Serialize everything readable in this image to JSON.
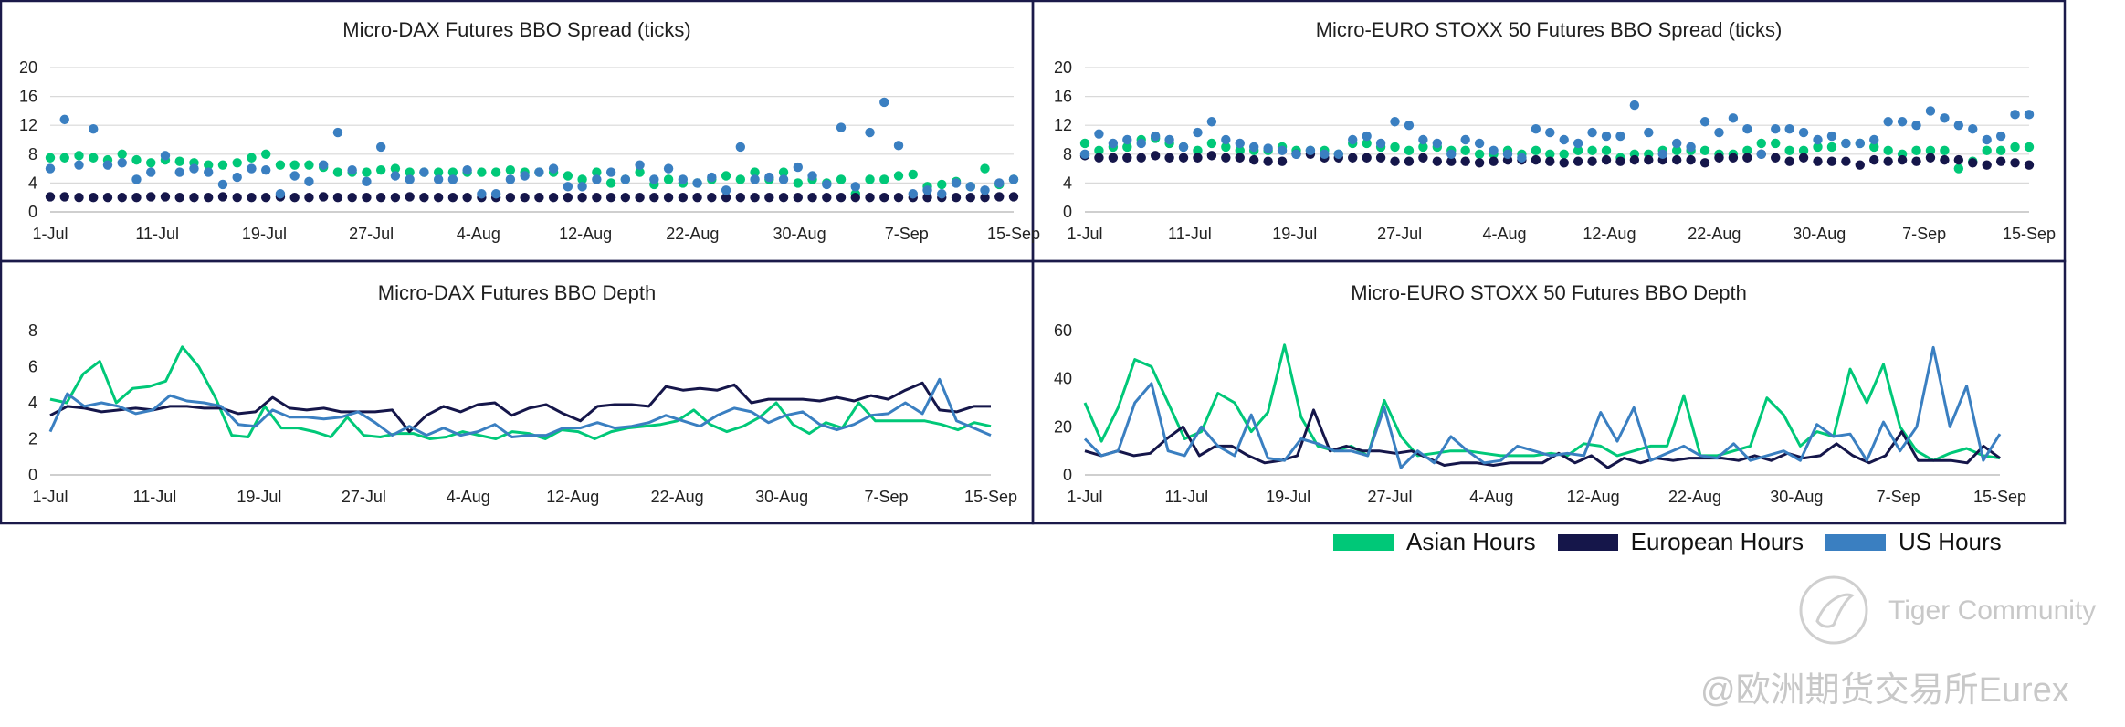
{
  "colors": {
    "asian": "#00c878",
    "european": "#15164a",
    "us": "#3a7fc1"
  },
  "legend": {
    "asian": "Asian Hours",
    "european": "European Hours",
    "us": "US Hours"
  },
  "watermark": {
    "line1": "Tiger Community",
    "line2": "@欧洲期货交易所Eurex"
  },
  "chart_data": [
    {
      "id": "dax_spread",
      "type": "scatter",
      "title": "Micro-DAX Futures BBO Spread (ticks)",
      "ylim": [
        0,
        20
      ],
      "yticks": [
        0,
        4,
        8,
        12,
        16,
        20
      ],
      "xticks": [
        "1-Jul",
        "11-Jul",
        "19-Jul",
        "27-Jul",
        "4-Aug",
        "12-Aug",
        "22-Aug",
        "30-Aug",
        "7-Sep",
        "15-Sep"
      ],
      "grid": true,
      "series": [
        {
          "key": "asian",
          "name": "Asian Hours",
          "values": [
            7.5,
            7.5,
            7.8,
            7.5,
            7.2,
            8.0,
            7.2,
            6.8,
            7.2,
            7.0,
            6.8,
            6.5,
            6.5,
            6.8,
            7.5,
            8.0,
            6.5,
            6.5,
            6.5,
            6.2,
            5.5,
            5.5,
            5.5,
            5.8,
            6.0,
            5.5,
            5.5,
            5.5,
            5.5,
            5.5,
            5.5,
            5.5,
            5.8,
            5.5,
            5.5,
            5.5,
            5.0,
            4.5,
            5.5,
            4.0,
            4.5,
            5.5,
            3.8,
            4.5,
            4.0,
            4.0,
            4.5,
            5.0,
            4.5,
            5.5,
            4.5,
            5.5,
            4.0,
            4.5,
            4.0,
            4.5,
            2.5,
            4.5,
            4.5,
            5.0,
            5.2,
            3.5,
            3.8,
            4.2,
            3.5,
            6.0,
            3.8,
            4.5
          ]
        },
        {
          "key": "european",
          "name": "European Hours",
          "values": [
            2.1,
            2.1,
            2.0,
            2.0,
            2.0,
            2.0,
            2.0,
            2.1,
            2.1,
            2.0,
            2.0,
            2.0,
            2.1,
            2.0,
            2.0,
            2.0,
            2.1,
            2.0,
            2.0,
            2.1,
            2.0,
            2.0,
            2.0,
            2.0,
            2.0,
            2.1,
            2.0,
            2.0,
            2.0,
            2.0,
            2.0,
            2.0,
            2.0,
            2.0,
            2.0,
            2.0,
            2.0,
            2.0,
            2.0,
            2.0,
            2.0,
            2.0,
            2.0,
            2.0,
            2.0,
            2.0,
            2.0,
            2.0,
            2.0,
            2.0,
            2.0,
            2.0,
            2.0,
            2.0,
            2.0,
            2.0,
            2.0,
            2.0,
            2.0,
            2.0,
            2.0,
            2.0,
            2.0,
            2.0,
            2.0,
            2.0,
            2.1,
            2.1
          ]
        },
        {
          "key": "us",
          "name": "US Hours",
          "values": [
            6.0,
            12.8,
            6.5,
            11.5,
            6.5,
            6.8,
            4.5,
            5.5,
            7.8,
            5.5,
            6.0,
            5.5,
            3.8,
            4.8,
            6.0,
            5.8,
            2.5,
            5.0,
            4.2,
            6.5,
            11.0,
            5.8,
            4.2,
            9.0,
            5.0,
            4.5,
            5.5,
            4.5,
            4.5,
            5.8,
            2.5,
            2.5,
            4.5,
            5.0,
            5.5,
            6.0,
            3.5,
            3.5,
            4.5,
            5.5,
            4.5,
            6.5,
            4.5,
            6.0,
            4.5,
            4.0,
            4.8,
            3.0,
            9.0,
            4.5,
            4.8,
            4.5,
            6.2,
            5.0,
            3.8,
            11.7,
            3.5,
            11.0,
            15.2,
            9.2,
            2.5,
            3.0,
            2.5,
            4.0,
            3.5,
            3.0,
            4.0,
            4.5
          ]
        }
      ]
    },
    {
      "id": "estx_spread",
      "type": "scatter",
      "title": "Micro-EURO STOXX 50 Futures BBO Spread (ticks)",
      "ylim": [
        0,
        20
      ],
      "yticks": [
        0,
        4,
        8,
        12,
        16,
        20
      ],
      "xticks": [
        "1-Jul",
        "11-Jul",
        "19-Jul",
        "27-Jul",
        "4-Aug",
        "12-Aug",
        "22-Aug",
        "30-Aug",
        "7-Sep",
        "15-Sep"
      ],
      "grid": true,
      "series": [
        {
          "key": "asian",
          "name": "Asian Hours",
          "values": [
            9.5,
            8.5,
            9.0,
            9.0,
            10.0,
            10.2,
            9.5,
            9.0,
            8.5,
            9.5,
            9.0,
            8.5,
            8.5,
            8.5,
            9.0,
            8.5,
            8.5,
            8.5,
            8.0,
            9.5,
            9.5,
            9.0,
            9.0,
            8.5,
            9.0,
            9.0,
            8.5,
            8.5,
            8.0,
            8.0,
            8.5,
            8.0,
            8.5,
            8.0,
            8.0,
            8.5,
            8.5,
            8.5,
            7.5,
            8.0,
            8.0,
            8.5,
            8.5,
            8.5,
            8.5,
            8.0,
            8.0,
            8.5,
            9.5,
            9.5,
            8.5,
            8.5,
            9.0,
            9.0,
            9.5,
            9.5,
            9.0,
            8.5,
            8.0,
            8.5,
            8.5,
            8.5,
            6.0,
            7.0,
            8.5,
            8.5,
            9.0,
            9.0
          ]
        },
        {
          "key": "european",
          "name": "European Hours",
          "values": [
            7.8,
            7.5,
            7.5,
            7.5,
            7.5,
            7.8,
            7.5,
            7.5,
            7.5,
            7.8,
            7.5,
            7.5,
            7.2,
            7.0,
            7.0,
            8.0,
            8.0,
            7.5,
            7.5,
            7.5,
            7.5,
            7.5,
            7.0,
            7.0,
            7.5,
            7.0,
            7.0,
            7.0,
            6.8,
            7.0,
            7.2,
            7.2,
            7.2,
            7.0,
            6.8,
            7.0,
            7.0,
            7.2,
            7.0,
            7.2,
            7.2,
            7.2,
            7.2,
            7.2,
            6.8,
            7.5,
            7.5,
            7.5,
            8.0,
            7.5,
            7.0,
            7.5,
            7.0,
            7.0,
            7.0,
            6.5,
            7.2,
            7.0,
            7.2,
            7.0,
            7.5,
            7.2,
            7.2,
            6.8,
            6.5,
            7.0,
            6.8,
            6.5
          ]
        },
        {
          "key": "us",
          "name": "US Hours",
          "values": [
            8.0,
            10.8,
            9.5,
            10.0,
            9.5,
            10.5,
            10.0,
            9.0,
            11.0,
            12.5,
            10.0,
            9.5,
            9.0,
            8.8,
            8.5,
            8.0,
            8.5,
            8.0,
            8.0,
            10.0,
            10.5,
            9.5,
            12.5,
            12.0,
            10.0,
            9.5,
            8.0,
            10.0,
            9.5,
            8.5,
            8.0,
            7.5,
            11.5,
            11.0,
            10.0,
            9.5,
            11.0,
            10.5,
            10.5,
            14.8,
            11.0,
            8.0,
            9.5,
            9.0,
            12.5,
            11.0,
            13.0,
            11.5,
            8.0,
            11.5,
            11.5,
            11.0,
            10.0,
            10.5,
            9.5,
            9.5,
            10.0,
            12.5,
            12.5,
            12.0,
            14.0,
            13.0,
            12.0,
            11.5,
            10.0,
            10.5,
            13.5,
            13.5
          ]
        }
      ]
    },
    {
      "id": "dax_depth",
      "type": "line",
      "title": "Micro-DAX Futures BBO Depth",
      "ylim": [
        0,
        8
      ],
      "yticks": [
        0,
        2,
        4,
        6,
        8
      ],
      "xticks": [
        "1-Jul",
        "11-Jul",
        "19-Jul",
        "27-Jul",
        "4-Aug",
        "12-Aug",
        "22-Aug",
        "30-Aug",
        "7-Sep",
        "15-Sep"
      ],
      "grid": false,
      "series": [
        {
          "key": "asian",
          "name": "Asian Hours",
          "values": [
            4.2,
            4.0,
            5.6,
            6.3,
            4.0,
            4.8,
            4.9,
            5.2,
            7.1,
            6.0,
            4.3,
            2.2,
            2.1,
            3.8,
            2.6,
            2.6,
            2.4,
            2.1,
            3.2,
            2.2,
            2.1,
            2.3,
            2.3,
            2.0,
            2.1,
            2.4,
            2.2,
            2.0,
            2.4,
            2.3,
            2.0,
            2.5,
            2.4,
            2.0,
            2.4,
            2.6,
            2.7,
            2.8,
            3.0,
            3.6,
            2.8,
            2.4,
            2.7,
            3.2,
            4.0,
            2.8,
            2.3,
            2.9,
            2.6,
            4.0,
            3.0,
            3.0,
            3.0,
            3.0,
            2.8,
            2.5,
            2.9,
            2.7
          ]
        },
        {
          "key": "european",
          "name": "European Hours",
          "values": [
            3.3,
            3.8,
            3.7,
            3.5,
            3.6,
            3.7,
            3.6,
            3.8,
            3.8,
            3.7,
            3.7,
            3.4,
            3.5,
            4.3,
            3.7,
            3.6,
            3.7,
            3.5,
            3.5,
            3.5,
            3.6,
            2.4,
            3.3,
            3.8,
            3.5,
            3.9,
            4.0,
            3.3,
            3.7,
            3.9,
            3.4,
            3.0,
            3.8,
            3.9,
            3.9,
            3.8,
            4.9,
            4.7,
            4.8,
            4.7,
            5.0,
            4.0,
            4.2,
            4.2,
            4.2,
            4.1,
            4.3,
            4.1,
            4.4,
            4.2,
            4.7,
            5.1,
            3.6,
            3.5,
            3.8,
            3.8
          ]
        },
        {
          "key": "us",
          "name": "US Hours",
          "values": [
            2.4,
            4.5,
            3.8,
            4.0,
            3.8,
            3.4,
            3.6,
            4.4,
            4.1,
            4.0,
            3.8,
            2.8,
            2.7,
            3.6,
            3.2,
            3.2,
            3.1,
            3.2,
            3.5,
            2.9,
            2.2,
            2.7,
            2.2,
            2.6,
            2.2,
            2.4,
            2.8,
            2.1,
            2.2,
            2.2,
            2.6,
            2.6,
            2.9,
            2.6,
            2.7,
            2.9,
            3.3,
            3.0,
            2.7,
            3.3,
            3.7,
            3.5,
            2.9,
            3.3,
            3.5,
            2.8,
            2.5,
            2.8,
            3.3,
            3.4,
            4.0,
            3.4,
            5.3,
            3.0,
            2.6,
            2.2
          ]
        }
      ]
    },
    {
      "id": "estx_depth",
      "type": "line",
      "title": "Micro-EURO STOXX 50 Futures BBO Depth",
      "ylim": [
        0,
        60
      ],
      "yticks": [
        0,
        20,
        40,
        60
      ],
      "xticks": [
        "1-Jul",
        "11-Jul",
        "19-Jul",
        "27-Jul",
        "4-Aug",
        "12-Aug",
        "22-Aug",
        "30-Aug",
        "7-Sep",
        "15-Sep"
      ],
      "grid": false,
      "series": [
        {
          "key": "asian",
          "name": "Asian Hours",
          "values": [
            30,
            14,
            28,
            48,
            45,
            30,
            15,
            18,
            34,
            30,
            18,
            26,
            54,
            24,
            12,
            10,
            12,
            8,
            31,
            16,
            8,
            9,
            10,
            10,
            9,
            8,
            8,
            8,
            9,
            8,
            13,
            12,
            8,
            10,
            12,
            12,
            33,
            8,
            8,
            10,
            12,
            32,
            25,
            12,
            18,
            16,
            44,
            30,
            46,
            20,
            10,
            6,
            9,
            11,
            8,
            7
          ]
        },
        {
          "key": "european",
          "name": "European Hours",
          "values": [
            10,
            8,
            10,
            8,
            9,
            15,
            20,
            8,
            12,
            12,
            8,
            5,
            6,
            8,
            27,
            10,
            12,
            10,
            10,
            9,
            10,
            7,
            4,
            5,
            5,
            4,
            5,
            5,
            5,
            9,
            5,
            8,
            3,
            7,
            5,
            7,
            6,
            7,
            7,
            7,
            6,
            8,
            6,
            9,
            7,
            8,
            13,
            8,
            5,
            8,
            18,
            6,
            6,
            6,
            5,
            12,
            7
          ]
        },
        {
          "key": "us",
          "name": "US Hours",
          "values": [
            15,
            8,
            10,
            30,
            38,
            10,
            8,
            20,
            12,
            8,
            25,
            7,
            6,
            15,
            13,
            10,
            10,
            8,
            28,
            3,
            10,
            5,
            16,
            10,
            5,
            6,
            12,
            10,
            8,
            9,
            8,
            26,
            14,
            28,
            6,
            9,
            12,
            8,
            7,
            13,
            6,
            8,
            10,
            6,
            21,
            16,
            17,
            6,
            22,
            10,
            20,
            53,
            20,
            37,
            6,
            17
          ]
        }
      ]
    }
  ]
}
